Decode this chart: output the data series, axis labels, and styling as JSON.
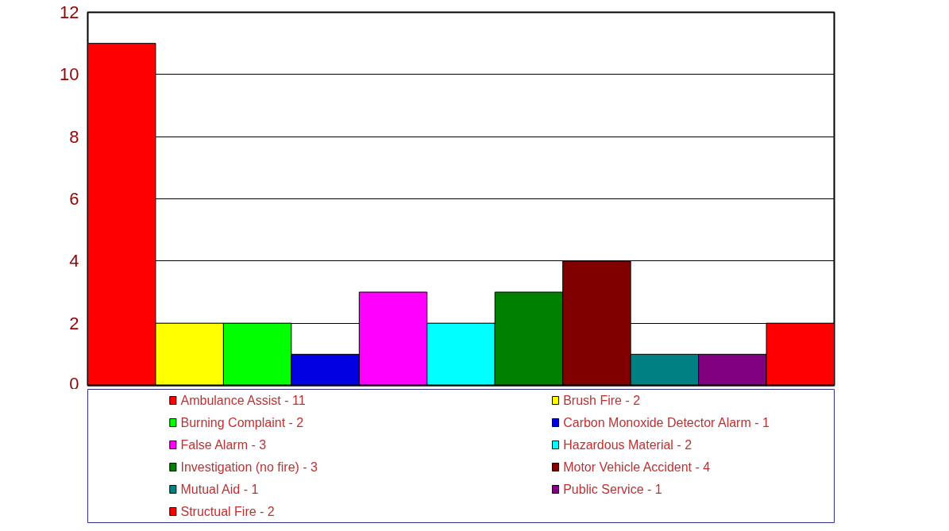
{
  "chart_data": {
    "type": "bar",
    "categories": [
      null,
      null,
      null,
      null,
      null,
      null,
      null,
      null,
      null,
      null,
      null
    ],
    "series": [
      {
        "name": "Ambulance Assist - 11",
        "color": "#ff0000",
        "values": [
          11,
          null,
          null,
          null,
          null,
          null,
          null,
          null,
          null,
          null,
          null
        ]
      },
      {
        "name": "Brush Fire - 2",
        "color": "#ffff00",
        "values": [
          null,
          2,
          null,
          null,
          null,
          null,
          null,
          null,
          null,
          null,
          null
        ]
      },
      {
        "name": "Burning Complaint - 2",
        "color": "#00ff00",
        "values": [
          null,
          null,
          2,
          null,
          null,
          null,
          null,
          null,
          null,
          null,
          null
        ]
      },
      {
        "name": "Carbon Monoxide Detector Alarm - 1",
        "color": "#0000e0",
        "values": [
          null,
          null,
          null,
          1,
          null,
          null,
          null,
          null,
          null,
          null,
          null
        ]
      },
      {
        "name": "False Alarm - 3",
        "color": "#ff00ff",
        "values": [
          null,
          null,
          null,
          null,
          3,
          null,
          null,
          null,
          null,
          null,
          null
        ]
      },
      {
        "name": "Hazardous Material - 2",
        "color": "#00ffff",
        "values": [
          null,
          null,
          null,
          null,
          null,
          2,
          null,
          null,
          null,
          null,
          null
        ]
      },
      {
        "name": "Investigation (no fire) - 3",
        "color": "#008000",
        "values": [
          null,
          null,
          null,
          null,
          null,
          null,
          3,
          null,
          null,
          null,
          null
        ]
      },
      {
        "name": "Motor Vehicle Accident - 4",
        "color": "#800000",
        "values": [
          null,
          null,
          null,
          null,
          null,
          null,
          null,
          4,
          null,
          null,
          null
        ]
      },
      {
        "name": "Mutual Aid - 1",
        "color": "#008080",
        "values": [
          null,
          null,
          null,
          null,
          null,
          null,
          null,
          null,
          1,
          null,
          null
        ]
      },
      {
        "name": "Public Service - 1",
        "color": "#800080",
        "values": [
          null,
          null,
          null,
          null,
          null,
          null,
          null,
          null,
          null,
          1,
          null
        ]
      },
      {
        "name": "Structual Fire - 2",
        "color": "#ff0000",
        "values": [
          null,
          null,
          null,
          null,
          null,
          null,
          null,
          null,
          null,
          null,
          2
        ]
      }
    ],
    "ylim": [
      0,
      12
    ],
    "yticks": [
      0,
      2,
      4,
      6,
      8,
      10,
      12
    ],
    "grid": "y",
    "legend": "bottom",
    "tick_labels": "y"
  }
}
